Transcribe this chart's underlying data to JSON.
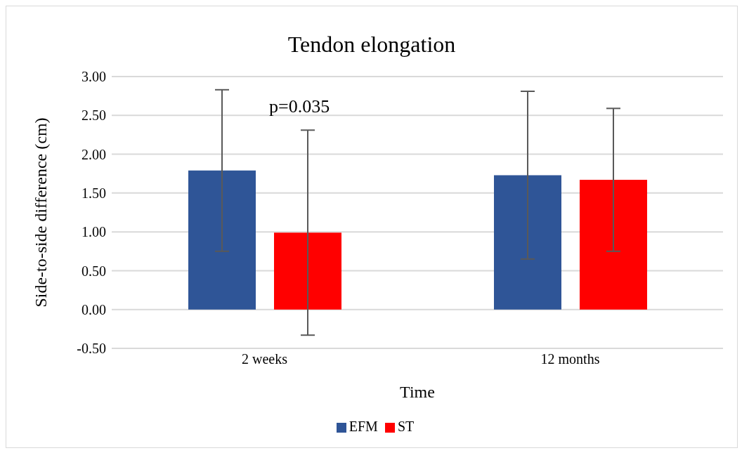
{
  "chart_data": {
    "type": "bar",
    "title": "Tendon elongation",
    "xlabel": "Time",
    "ylabel": "Side-to-side difference (cm)",
    "categories": [
      "2 weeks",
      "12 months"
    ],
    "series": [
      {
        "name": "EFM",
        "color": "#2f5597",
        "values": [
          1.79,
          1.73
        ],
        "errors": [
          1.04,
          1.08
        ]
      },
      {
        "name": "ST",
        "color": "#ff0000",
        "values": [
          0.99,
          1.67
        ],
        "errors": [
          1.32,
          0.92
        ]
      }
    ],
    "ylim": [
      -0.5,
      3
    ],
    "yticks": [
      {
        "value": -0.5,
        "label": "-0.50"
      },
      {
        "value": 0,
        "label": "0.00"
      },
      {
        "value": 0.5,
        "label": "0.50"
      },
      {
        "value": 1,
        "label": "1.00"
      },
      {
        "value": 1.5,
        "label": "1.50"
      },
      {
        "value": 2,
        "label": "2.00"
      },
      {
        "value": 2.5,
        "label": "2.50"
      },
      {
        "value": 3,
        "label": "3.00"
      }
    ],
    "grid": "y",
    "legend": "bottom",
    "annotations": [
      "p=0.035"
    ]
  }
}
